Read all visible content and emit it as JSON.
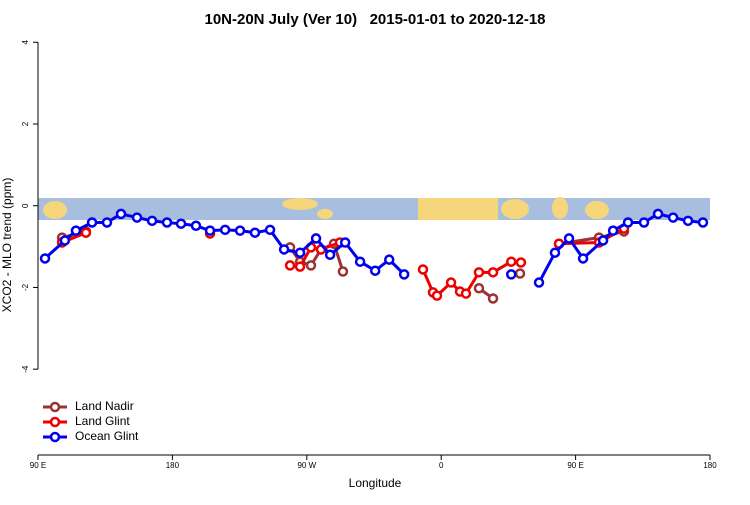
{
  "chart_data": {
    "type": "line",
    "title": "10N-20N July (Ver 10)   2015-01-01 to 2020-12-18",
    "x_label": "Longitude",
    "y_label": "XCO2 - MLO trend (ppm)",
    "xlim": [
      90,
      540
    ],
    "xticks": [
      {
        "value": 90,
        "label": "90 E"
      },
      180,
      {
        "value": 270,
        "label": "90 W"
      },
      {
        "value": 360,
        "label": "0"
      },
      {
        "value": 450,
        "label": "90 E"
      },
      {
        "value": 540,
        "label": "180"
      }
    ],
    "ylim": [
      -6.1,
      4.3
    ],
    "yticks": [
      -4,
      -2,
      0,
      2,
      4
    ],
    "legend": "bottom-left",
    "series": [
      {
        "name": "Land Nadir",
        "color": "#993333",
        "x": [
          106.1,
          122.1,
          null,
          258.8,
          265.5,
          272.8,
          279.5,
          288.2,
          294.2,
          null,
          385.3,
          394.7,
          null,
          412.8,
          null,
          438.9,
          465.7,
          482.4
        ],
        "values": [
          -0.78,
          -0.63,
          null,
          -1.02,
          -1.37,
          -1.46,
          -1.07,
          -0.93,
          -1.61,
          null,
          -2.02,
          -2.27,
          null,
          -1.66,
          null,
          -0.93,
          -0.78,
          -0.63
        ]
      },
      {
        "name": "Land Glint",
        "color": "#ee0000",
        "x": [
          106.1,
          122.1,
          null,
          205.2,
          null,
          258.8,
          265.5,
          272.8,
          279.5,
          292.2,
          null,
          347.8,
          354.5,
          357.2,
          366.6,
          372.6,
          376.6,
          385.3,
          394.7,
          406.9,
          413.4,
          null,
          438.9,
          465.7,
          482.4
        ],
        "values": [
          -0.9,
          -0.66,
          null,
          -0.68,
          null,
          -1.46,
          -1.49,
          -1.02,
          -1.07,
          -0.9,
          null,
          -1.56,
          -2.12,
          -2.2,
          -1.88,
          -2.1,
          -2.15,
          -1.63,
          -1.63,
          -1.37,
          -1.39,
          null,
          -0.93,
          -0.9,
          -0.56
        ]
      },
      {
        "name": "Ocean Glint",
        "color": "#0000ee",
        "x": [
          94.7,
          108,
          115.4,
          126.2,
          136.2,
          145.6,
          156.3,
          166.4,
          176.4,
          185.8,
          195.8,
          205.2,
          215.3,
          225.3,
          235.3,
          245.4,
          254.8,
          265.5,
          276.2,
          285.6,
          295.7,
          305.7,
          315.8,
          325.2,
          335.2,
          null,
          406.9,
          null,
          425.5,
          436.2,
          445.6,
          455,
          468.4,
          475.1,
          485.1,
          495.8,
          505.2,
          515.3,
          525.3,
          535.3
        ],
        "values": [
          -1.29,
          -0.85,
          -0.61,
          -0.41,
          -0.41,
          -0.2,
          -0.29,
          -0.37,
          -0.41,
          -0.44,
          -0.49,
          -0.61,
          -0.59,
          -0.61,
          -0.66,
          -0.59,
          -1.07,
          -1.15,
          -0.8,
          -1.2,
          -0.9,
          -1.37,
          -1.59,
          -1.32,
          -1.68,
          null,
          -1.68,
          null,
          -1.88,
          -1.15,
          -0.8,
          -1.29,
          -0.85,
          -0.61,
          -0.41,
          -0.41,
          -0.2,
          -0.29,
          -0.37,
          -0.41
        ]
      }
    ]
  }
}
